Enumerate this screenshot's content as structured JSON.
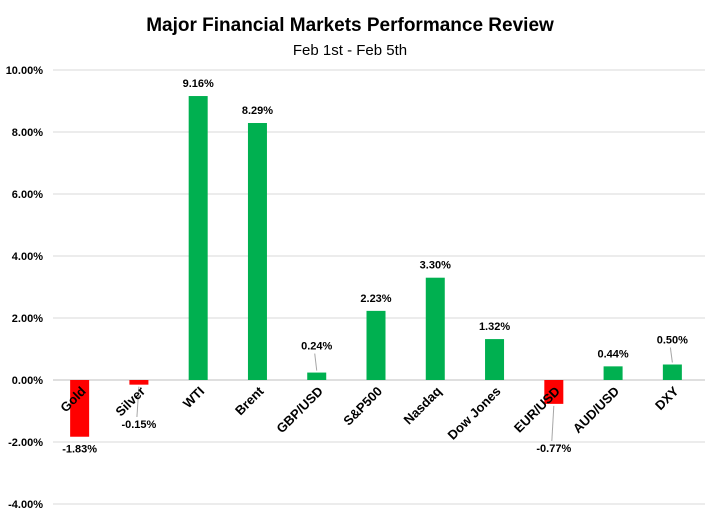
{
  "chart_data": {
    "type": "bar",
    "title": "Major Financial Markets Performance Review",
    "subtitle": "Feb 1st - Feb 5th",
    "xlabel": "",
    "ylabel": "",
    "ylim": [
      -4,
      10
    ],
    "yticks": [
      -4,
      -2,
      0,
      2,
      4,
      6,
      8,
      10
    ],
    "ytick_labels": [
      "-4.00%",
      "-2.00%",
      "0.00%",
      "2.00%",
      "4.00%",
      "6.00%",
      "8.00%",
      "10.00%"
    ],
    "grid": true,
    "legend": "none",
    "categories": [
      "Gold",
      "Silver",
      "WTI",
      "Brent",
      "GBP/USD",
      "S&P500",
      "Nasdaq",
      "Dow Jones",
      "EUR/USD",
      "AUD/USD",
      "DXY"
    ],
    "values": [
      -1.83,
      -0.15,
      9.16,
      8.29,
      0.24,
      2.23,
      3.3,
      1.32,
      -0.77,
      0.44,
      0.5
    ],
    "data_labels": [
      "-1.83%",
      "-0.15%",
      "9.16%",
      "8.29%",
      "0.24%",
      "2.23%",
      "3.30%",
      "1.32%",
      "-0.77%",
      "0.44%",
      "0.50%"
    ],
    "colors": {
      "positive": "#00B050",
      "negative": "#FF0000",
      "grid": "#D9D9D9",
      "axis": "#BFBFBF",
      "text": "#000000"
    }
  }
}
